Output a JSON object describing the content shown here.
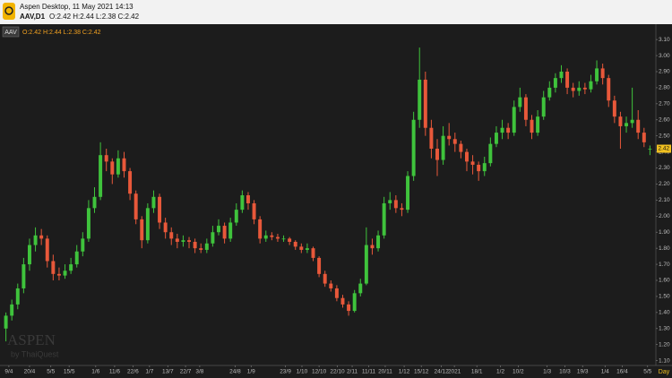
{
  "window": {
    "title": "Aspen Desktop, 11 May 2021 14:13",
    "symbol_period": "AAV,D1",
    "ohlc_text": "O:2.42 H:2.44 L:2.38 C:2.42"
  },
  "chart_data": {
    "type": "candlestick",
    "symbol": "AAV",
    "watermark": "ASPEN",
    "watermark_sub": "by ThaiQuest",
    "period_label": "Day",
    "up_color": "#3fc33c",
    "down_color": "#e8583a",
    "grid": false,
    "xlim": [
      -1,
      110
    ],
    "ylim": [
      1.07,
      3.19
    ],
    "yticks": [
      {
        "value": 1.1,
        "label": "1.10"
      },
      {
        "value": 1.2,
        "label": "1.20"
      },
      {
        "value": 1.3,
        "label": "1.30"
      },
      {
        "value": 1.4,
        "label": "1.40"
      },
      {
        "value": 1.5,
        "label": "1.50"
      },
      {
        "value": 1.6,
        "label": "1.60"
      },
      {
        "value": 1.7,
        "label": "1.70"
      },
      {
        "value": 1.8,
        "label": "1.80"
      },
      {
        "value": 1.9,
        "label": "1.90"
      },
      {
        "value": 2,
        "label": "2.00"
      },
      {
        "value": 2.1,
        "label": "2.10"
      },
      {
        "value": 2.2,
        "label": "2.20"
      },
      {
        "value": 2.3,
        "label": "2.30"
      },
      {
        "value": 2.4,
        "label": "2.40"
      },
      {
        "value": 2.5,
        "label": "2.50"
      },
      {
        "value": 2.6,
        "label": "2.60"
      },
      {
        "value": 2.7,
        "label": "2.70"
      },
      {
        "value": 2.8,
        "label": "2.80"
      },
      {
        "value": 2.9,
        "label": "2.90"
      },
      {
        "value": 3,
        "label": "3.00"
      },
      {
        "value": 3.1,
        "label": "3.10"
      }
    ],
    "xticks": [
      {
        "value": 0.5,
        "label": "9/4"
      },
      {
        "value": 4,
        "label": "20/4"
      },
      {
        "value": 7.6,
        "label": "5/5"
      },
      {
        "value": 10.7,
        "label": "15/5"
      },
      {
        "value": 15.2,
        "label": "1/6"
      },
      {
        "value": 18.4,
        "label": "11/6"
      },
      {
        "value": 21.5,
        "label": "22/6"
      },
      {
        "value": 24.3,
        "label": "1/7"
      },
      {
        "value": 27.4,
        "label": "13/7"
      },
      {
        "value": 30.4,
        "label": "22/7"
      },
      {
        "value": 32.8,
        "label": "3/8"
      },
      {
        "value": 38.8,
        "label": "24/8"
      },
      {
        "value": 41.5,
        "label": "1/9"
      },
      {
        "value": 47.3,
        "label": "23/9"
      },
      {
        "value": 50.1,
        "label": "1/10"
      },
      {
        "value": 53,
        "label": "12/10"
      },
      {
        "value": 56.1,
        "label": "22/10"
      },
      {
        "value": 58.6,
        "label": "2/11"
      },
      {
        "value": 61.4,
        "label": "11/11"
      },
      {
        "value": 64.2,
        "label": "20/11"
      },
      {
        "value": 67.4,
        "label": "1/12"
      },
      {
        "value": 70.3,
        "label": "15/12"
      },
      {
        "value": 73.7,
        "label": "24/12"
      },
      {
        "value": 75.9,
        "label": "2021"
      },
      {
        "value": 79.7,
        "label": "18/1"
      },
      {
        "value": 83.7,
        "label": "1/2"
      },
      {
        "value": 86.7,
        "label": "10/2"
      },
      {
        "value": 91.6,
        "label": "1/3"
      },
      {
        "value": 94.6,
        "label": "10/3"
      },
      {
        "value": 97.6,
        "label": "19/3"
      },
      {
        "value": 101.4,
        "label": "1/4"
      },
      {
        "value": 104.3,
        "label": "16/4"
      },
      {
        "value": 108.6,
        "label": "5/5"
      }
    ],
    "candles": [
      [
        1.3,
        1.4,
        1.22,
        1.38
      ],
      [
        1.38,
        1.48,
        1.35,
        1.45
      ],
      [
        1.45,
        1.58,
        1.42,
        1.55
      ],
      [
        1.55,
        1.74,
        1.52,
        1.7
      ],
      [
        1.7,
        1.86,
        1.66,
        1.82
      ],
      [
        1.82,
        1.93,
        1.78,
        1.88
      ],
      [
        1.88,
        1.92,
        1.82,
        1.86
      ],
      [
        1.86,
        1.88,
        1.68,
        1.72
      ],
      [
        1.72,
        1.76,
        1.6,
        1.64
      ],
      [
        1.64,
        1.68,
        1.6,
        1.63
      ],
      [
        1.63,
        1.7,
        1.61,
        1.66
      ],
      [
        1.66,
        1.74,
        1.64,
        1.7
      ],
      [
        1.7,
        1.82,
        1.68,
        1.78
      ],
      [
        1.78,
        1.9,
        1.75,
        1.86
      ],
      [
        1.86,
        2.1,
        1.84,
        2.05
      ],
      [
        2.05,
        2.18,
        2.02,
        2.12
      ],
      [
        2.12,
        2.46,
        2.1,
        2.38
      ],
      [
        2.38,
        2.42,
        2.28,
        2.34
      ],
      [
        2.34,
        2.36,
        2.2,
        2.26
      ],
      [
        2.26,
        2.41,
        2.24,
        2.36
      ],
      [
        2.36,
        2.4,
        2.24,
        2.28
      ],
      [
        2.28,
        2.3,
        2.1,
        2.14
      ],
      [
        2.14,
        2.16,
        1.95,
        1.98
      ],
      [
        1.98,
        2.0,
        1.8,
        1.85
      ],
      [
        1.85,
        2.08,
        1.83,
        2.05
      ],
      [
        2.05,
        2.16,
        2.02,
        2.12
      ],
      [
        2.12,
        2.14,
        1.92,
        1.96
      ],
      [
        1.96,
        1.99,
        1.86,
        1.9
      ],
      [
        1.9,
        1.93,
        1.82,
        1.86
      ],
      [
        1.86,
        1.89,
        1.8,
        1.84
      ],
      [
        1.84,
        1.88,
        1.81,
        1.85
      ],
      [
        1.85,
        1.87,
        1.8,
        1.84
      ],
      [
        1.84,
        1.86,
        1.77,
        1.8
      ],
      [
        1.8,
        1.83,
        1.77,
        1.79
      ],
      [
        1.79,
        1.86,
        1.77,
        1.83
      ],
      [
        1.83,
        1.94,
        1.81,
        1.9
      ],
      [
        1.9,
        1.98,
        1.88,
        1.94
      ],
      [
        1.94,
        1.96,
        1.83,
        1.86
      ],
      [
        1.86,
        1.99,
        1.84,
        1.96
      ],
      [
        1.96,
        2.08,
        1.94,
        2.04
      ],
      [
        2.04,
        2.16,
        2.02,
        2.13
      ],
      [
        2.13,
        2.15,
        2.04,
        2.08
      ],
      [
        2.08,
        2.1,
        1.95,
        1.98
      ],
      [
        1.98,
        2.0,
        1.83,
        1.86
      ],
      [
        1.86,
        1.91,
        1.84,
        1.88
      ],
      [
        1.88,
        1.9,
        1.85,
        1.87
      ],
      [
        1.87,
        1.89,
        1.84,
        1.86
      ],
      [
        1.86,
        1.88,
        1.84,
        1.86
      ],
      [
        1.86,
        1.87,
        1.82,
        1.84
      ],
      [
        1.84,
        1.85,
        1.79,
        1.81
      ],
      [
        1.81,
        1.83,
        1.77,
        1.79
      ],
      [
        1.79,
        1.83,
        1.77,
        1.8
      ],
      [
        1.8,
        1.81,
        1.72,
        1.74
      ],
      [
        1.74,
        1.75,
        1.62,
        1.64
      ],
      [
        1.64,
        1.66,
        1.56,
        1.58
      ],
      [
        1.58,
        1.6,
        1.53,
        1.55
      ],
      [
        1.55,
        1.57,
        1.47,
        1.49
      ],
      [
        1.49,
        1.51,
        1.43,
        1.45
      ],
      [
        1.45,
        1.47,
        1.38,
        1.41
      ],
      [
        1.41,
        1.54,
        1.4,
        1.52
      ],
      [
        1.52,
        1.61,
        1.5,
        1.58
      ],
      [
        1.58,
        1.93,
        1.57,
        1.82
      ],
      [
        1.82,
        1.86,
        1.76,
        1.8
      ],
      [
        1.8,
        1.91,
        1.78,
        1.88
      ],
      [
        1.88,
        2.12,
        1.86,
        2.08
      ],
      [
        2.08,
        2.15,
        2.04,
        2.1
      ],
      [
        2.1,
        2.13,
        2.02,
        2.05
      ],
      [
        2.05,
        2.08,
        2.0,
        2.04
      ],
      [
        2.04,
        2.28,
        2.02,
        2.25
      ],
      [
        2.25,
        2.65,
        2.22,
        2.6
      ],
      [
        2.6,
        3.05,
        2.55,
        2.85
      ],
      [
        2.85,
        2.9,
        2.5,
        2.55
      ],
      [
        2.55,
        2.6,
        2.36,
        2.42
      ],
      [
        2.42,
        2.48,
        2.25,
        2.35
      ],
      [
        2.35,
        2.56,
        2.32,
        2.5
      ],
      [
        2.5,
        2.58,
        2.44,
        2.48
      ],
      [
        2.48,
        2.52,
        2.4,
        2.45
      ],
      [
        2.45,
        2.47,
        2.36,
        2.4
      ],
      [
        2.4,
        2.42,
        2.28,
        2.34
      ],
      [
        2.34,
        2.38,
        2.26,
        2.32
      ],
      [
        2.32,
        2.34,
        2.22,
        2.28
      ],
      [
        2.28,
        2.37,
        2.25,
        2.33
      ],
      [
        2.33,
        2.49,
        2.31,
        2.45
      ],
      [
        2.45,
        2.56,
        2.43,
        2.52
      ],
      [
        2.52,
        2.6,
        2.48,
        2.55
      ],
      [
        2.55,
        2.58,
        2.48,
        2.52
      ],
      [
        2.52,
        2.72,
        2.5,
        2.68
      ],
      [
        2.68,
        2.8,
        2.65,
        2.74
      ],
      [
        2.74,
        2.76,
        2.56,
        2.6
      ],
      [
        2.6,
        2.63,
        2.48,
        2.52
      ],
      [
        2.52,
        2.66,
        2.5,
        2.62
      ],
      [
        2.62,
        2.78,
        2.6,
        2.74
      ],
      [
        2.74,
        2.84,
        2.72,
        2.8
      ],
      [
        2.8,
        2.89,
        2.77,
        2.86
      ],
      [
        2.86,
        2.94,
        2.83,
        2.9
      ],
      [
        2.9,
        2.92,
        2.76,
        2.8
      ],
      [
        2.8,
        2.83,
        2.74,
        2.78
      ],
      [
        2.78,
        2.84,
        2.75,
        2.8
      ],
      [
        2.8,
        2.83,
        2.76,
        2.79
      ],
      [
        2.79,
        2.88,
        2.77,
        2.84
      ],
      [
        2.84,
        2.97,
        2.82,
        2.92
      ],
      [
        2.92,
        2.95,
        2.82,
        2.86
      ],
      [
        2.86,
        2.88,
        2.68,
        2.72
      ],
      [
        2.72,
        2.75,
        2.58,
        2.62
      ],
      [
        2.62,
        2.65,
        2.42,
        2.56
      ],
      [
        2.56,
        2.62,
        2.52,
        2.58
      ],
      [
        2.58,
        2.8,
        2.55,
        2.6
      ],
      [
        2.6,
        2.66,
        2.48,
        2.52
      ],
      [
        2.52,
        2.55,
        2.43,
        2.46
      ],
      [
        2.42,
        2.44,
        2.38,
        2.42
      ]
    ]
  }
}
